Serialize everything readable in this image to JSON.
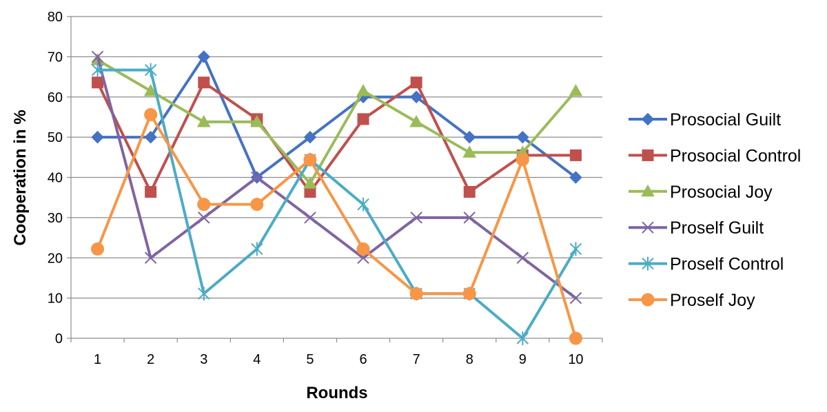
{
  "chart_data": {
    "type": "line",
    "title": "",
    "xlabel": "Rounds",
    "ylabel": "Cooperation in %",
    "x": [
      1,
      2,
      3,
      4,
      5,
      6,
      7,
      8,
      9,
      10
    ],
    "ylim": [
      0,
      80
    ],
    "yticks": [
      0,
      10,
      20,
      30,
      40,
      50,
      60,
      70,
      80
    ],
    "grid": "horizontal",
    "legend_position": "right",
    "series": [
      {
        "name": "Prosocial Guilt",
        "color": "#4472C4",
        "marker": "diamond",
        "values": [
          50,
          50,
          70,
          40,
          50,
          60,
          60,
          50,
          50,
          40
        ]
      },
      {
        "name": "Prosocial Control",
        "color": "#C0504D",
        "marker": "square",
        "values": [
          63.6,
          36.4,
          63.6,
          54.5,
          36.4,
          54.5,
          63.6,
          36.4,
          45.5,
          45.5
        ]
      },
      {
        "name": "Prosocial Joy",
        "color": "#9BBB59",
        "marker": "triangle",
        "values": [
          69.2,
          61.5,
          53.8,
          53.8,
          38.5,
          61.5,
          53.8,
          46.2,
          46.2,
          61.5
        ]
      },
      {
        "name": "Proself Guilt",
        "color": "#8064A2",
        "marker": "x",
        "values": [
          70,
          20,
          30,
          40,
          30,
          20,
          30,
          30,
          20,
          10
        ]
      },
      {
        "name": "Proself Control",
        "color": "#4BACC6",
        "marker": "star",
        "values": [
          66.7,
          66.7,
          11.1,
          22.2,
          44.4,
          33.3,
          11.1,
          11.1,
          0,
          22.2
        ]
      },
      {
        "name": "Proself Joy",
        "color": "#F79646",
        "marker": "circle",
        "values": [
          22.2,
          55.6,
          33.3,
          33.3,
          44.4,
          22.2,
          11.1,
          11.1,
          44.4,
          0
        ]
      }
    ]
  }
}
